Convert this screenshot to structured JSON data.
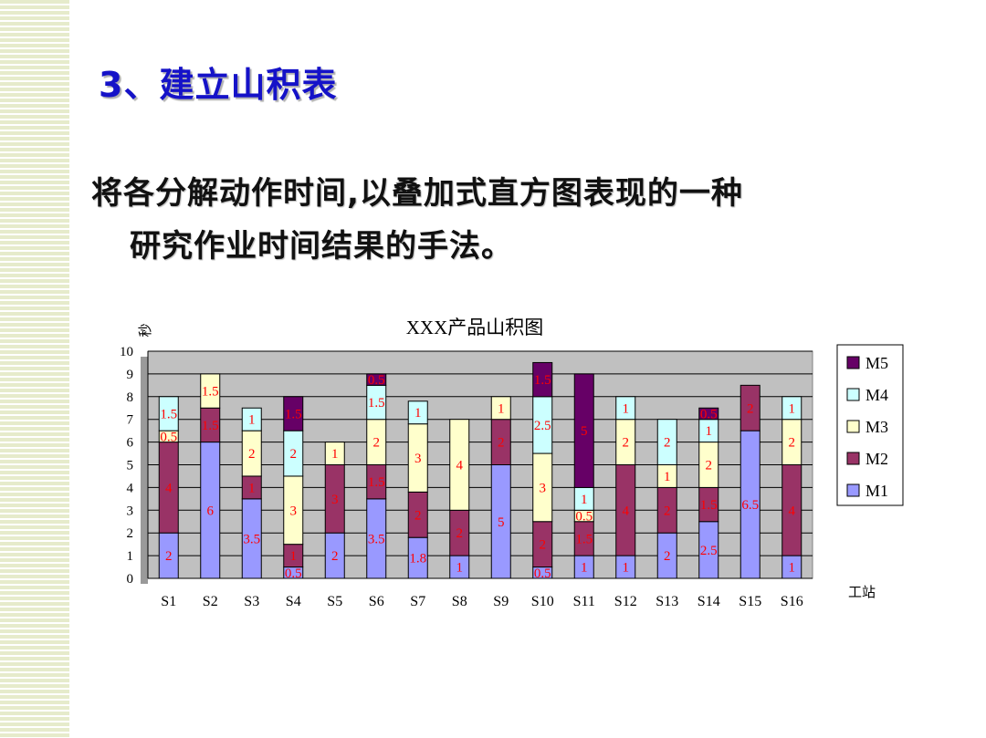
{
  "slide": {
    "title": "3、建立山积表",
    "body_line1": "将各分解动作时间,以叠加式直方图表现的一种",
    "body_line2": "研究作业时间结果的手法。"
  },
  "chart_data": {
    "type": "bar",
    "stacked": true,
    "title": "XXX产品山积图",
    "xlabel": "工站",
    "ylabel": "秒",
    "ylim": [
      0,
      10
    ],
    "yticks": [
      0,
      1,
      2,
      3,
      4,
      5,
      6,
      7,
      8,
      9,
      10
    ],
    "grid": true,
    "legend_position": "right",
    "categories": [
      "S1",
      "S2",
      "S3",
      "S4",
      "S5",
      "S6",
      "S7",
      "S8",
      "S9",
      "S10",
      "S11",
      "S12",
      "S13",
      "S14",
      "S15",
      "S16"
    ],
    "series": [
      {
        "name": "M1",
        "color": "#9999ff",
        "values": [
          2,
          6,
          3.5,
          0.5,
          2,
          3.5,
          1.8,
          1,
          5,
          0.5,
          1,
          1,
          2,
          2.5,
          6.5,
          1
        ]
      },
      {
        "name": "M2",
        "color": "#993366",
        "values": [
          4,
          1.5,
          1,
          1,
          3,
          1.5,
          2,
          2,
          2,
          2,
          1.5,
          4,
          2,
          1.5,
          2,
          4
        ]
      },
      {
        "name": "M3",
        "color": "#ffffcc",
        "values": [
          0.5,
          1.5,
          2,
          3,
          1,
          2,
          3,
          4,
          1,
          3,
          0.5,
          2,
          1,
          2,
          0,
          2
        ]
      },
      {
        "name": "M4",
        "color": "#ccffff",
        "values": [
          1.5,
          0,
          1,
          2,
          0,
          1.5,
          1,
          0,
          0,
          2.5,
          1,
          1,
          2,
          1,
          0,
          1
        ]
      },
      {
        "name": "M5",
        "color": "#660066",
        "values": [
          0,
          0,
          0,
          1.5,
          0,
          0.5,
          0,
          0,
          0,
          1.5,
          5,
          0,
          0,
          0.5,
          0,
          0
        ]
      }
    ],
    "label_color": "#ff0000"
  }
}
